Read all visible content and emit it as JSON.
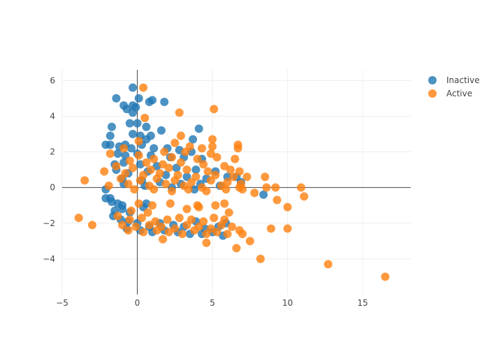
{
  "chart_data": {
    "type": "scatter",
    "title": "",
    "xlabel": "",
    "ylabel": "",
    "xlim": [
      -5,
      18.2
    ],
    "ylim": [
      -6,
      6.6
    ],
    "xticks": [
      -5,
      0,
      5,
      10,
      15
    ],
    "yticks": [
      -4,
      -2,
      0,
      2,
      4,
      6
    ],
    "grid": true,
    "zero_lines": true,
    "legend": {
      "placement": "top-right"
    },
    "series": [
      {
        "name": "Inactive",
        "color": "#1f77b4",
        "points": [
          [
            -0.3,
            5.6
          ],
          [
            0.1,
            5.0
          ],
          [
            1.0,
            4.9
          ],
          [
            0.8,
            4.8
          ],
          [
            1.8,
            4.8
          ],
          [
            -1.4,
            5.0
          ],
          [
            -0.9,
            4.6
          ],
          [
            -0.7,
            4.4
          ],
          [
            -0.3,
            4.6
          ],
          [
            -0.1,
            4.5
          ],
          [
            -0.3,
            4.2
          ],
          [
            4.1,
            3.3
          ],
          [
            -1.7,
            3.4
          ],
          [
            -0.5,
            3.6
          ],
          [
            0.0,
            3.6
          ],
          [
            0.6,
            3.4
          ],
          [
            1.6,
            3.2
          ],
          [
            -1.8,
            2.9
          ],
          [
            -0.3,
            3.0
          ],
          [
            0.2,
            2.9
          ],
          [
            0.9,
            2.9
          ],
          [
            0.6,
            2.7
          ],
          [
            3.7,
            2.7
          ],
          [
            -2.1,
            2.4
          ],
          [
            -1.8,
            2.4
          ],
          [
            -1.2,
            2.3
          ],
          [
            -0.8,
            2.4
          ],
          [
            -0.4,
            2.2
          ],
          [
            0.3,
            2.4
          ],
          [
            1.1,
            2.2
          ],
          [
            2.0,
            2.2
          ],
          [
            2.8,
            2.1
          ],
          [
            3.6,
            2.0
          ],
          [
            -1.3,
            1.9
          ],
          [
            -0.8,
            1.8
          ],
          [
            0.0,
            1.9
          ],
          [
            0.9,
            1.8
          ],
          [
            2.2,
            1.7
          ],
          [
            3.1,
            1.7
          ],
          [
            4.3,
            1.6
          ],
          [
            -1.5,
            1.3
          ],
          [
            -0.9,
            1.4
          ],
          [
            0.2,
            1.3
          ],
          [
            1.3,
            1.2
          ],
          [
            2.6,
            1.1
          ],
          [
            3.9,
            1.0
          ],
          [
            5.2,
            0.9
          ],
          [
            -1.4,
            1.0
          ],
          [
            -0.6,
            0.8
          ],
          [
            0.7,
            0.9
          ],
          [
            1.9,
            0.7
          ],
          [
            3.3,
            0.6
          ],
          [
            4.6,
            0.5
          ],
          [
            6.0,
            0.6
          ],
          [
            -1.0,
            0.5
          ],
          [
            0.3,
            0.4
          ],
          [
            1.5,
            0.3
          ],
          [
            2.9,
            0.2
          ],
          [
            4.2,
            0.2
          ],
          [
            5.5,
            0.1
          ],
          [
            6.6,
            0.6
          ],
          [
            -0.9,
            0.2
          ],
          [
            0.5,
            0.1
          ],
          [
            2.3,
            0.0
          ],
          [
            3.8,
            -0.1
          ],
          [
            6.9,
            0.3
          ],
          [
            8.4,
            -0.4
          ],
          [
            -2.1,
            -0.1
          ],
          [
            -2.1,
            -0.6
          ],
          [
            -1.8,
            -0.6
          ],
          [
            -1.7,
            -0.8
          ],
          [
            -1.3,
            -0.9
          ],
          [
            -1.0,
            -1.0
          ],
          [
            -1.5,
            -1.3
          ],
          [
            -1.0,
            -1.2
          ],
          [
            -0.5,
            -1.4
          ],
          [
            0.6,
            -0.9
          ],
          [
            0.4,
            -1.1
          ],
          [
            -1.6,
            -1.6
          ],
          [
            -1.1,
            -1.8
          ],
          [
            -0.6,
            -1.9
          ],
          [
            0.0,
            -2.0
          ],
          [
            0.8,
            -2.2
          ],
          [
            1.5,
            -2.0
          ],
          [
            2.4,
            -2.1
          ],
          [
            3.1,
            -2.2
          ],
          [
            3.9,
            -1.9
          ],
          [
            4.5,
            -2.3
          ],
          [
            5.4,
            -2.2
          ],
          [
            5.9,
            -2.0
          ],
          [
            -0.7,
            -2.3
          ],
          [
            0.2,
            -2.4
          ],
          [
            1.0,
            -2.5
          ],
          [
            1.8,
            -2.4
          ],
          [
            2.7,
            -2.5
          ],
          [
            3.5,
            -2.6
          ],
          [
            4.3,
            -2.6
          ],
          [
            5.0,
            -2.5
          ],
          [
            5.7,
            -2.7
          ]
        ]
      },
      {
        "name": "Active",
        "color": "#ff7f0e",
        "points": [
          [
            0.4,
            5.6
          ],
          [
            5.1,
            4.4
          ],
          [
            2.8,
            4.2
          ],
          [
            0.5,
            3.9
          ],
          [
            2.9,
            2.9
          ],
          [
            5.0,
            2.7
          ],
          [
            0.1,
            2.6
          ],
          [
            2.5,
            2.5
          ],
          [
            3.5,
            2.3
          ],
          [
            5.0,
            2.3
          ],
          [
            6.7,
            2.4
          ],
          [
            6.7,
            2.2
          ],
          [
            4.3,
            2.2
          ],
          [
            3.2,
            2.0
          ],
          [
            1.8,
            2.0
          ],
          [
            4.9,
            1.9
          ],
          [
            -1.8,
            1.9
          ],
          [
            -0.9,
            2.2
          ],
          [
            0.1,
            1.8
          ],
          [
            1.1,
            1.6
          ],
          [
            2.3,
            1.7
          ],
          [
            4.0,
            1.6
          ],
          [
            5.3,
            1.7
          ],
          [
            6.5,
            1.6
          ],
          [
            -0.5,
            1.5
          ],
          [
            0.6,
            1.4
          ],
          [
            1.7,
            1.3
          ],
          [
            2.9,
            1.4
          ],
          [
            4.4,
            1.3
          ],
          [
            5.8,
            1.2
          ],
          [
            -1.4,
            1.2
          ],
          [
            -0.3,
            1.1
          ],
          [
            0.9,
            1.0
          ],
          [
            2.1,
            1.1
          ],
          [
            3.3,
            1.0
          ],
          [
            4.7,
            0.9
          ],
          [
            6.2,
            1.0
          ],
          [
            6.8,
            0.9
          ],
          [
            -2.2,
            0.9
          ],
          [
            -0.8,
            0.8
          ],
          [
            0.4,
            0.7
          ],
          [
            1.5,
            0.8
          ],
          [
            2.7,
            0.7
          ],
          [
            3.9,
            0.6
          ],
          [
            5.2,
            0.7
          ],
          [
            6.4,
            0.6
          ],
          [
            7.3,
            0.6
          ],
          [
            -1.1,
            0.5
          ],
          [
            0.2,
            0.4
          ],
          [
            1.3,
            0.5
          ],
          [
            2.5,
            0.4
          ],
          [
            3.6,
            0.3
          ],
          [
            4.9,
            0.4
          ],
          [
            6.0,
            0.3
          ],
          [
            6.9,
            0.2
          ],
          [
            -0.6,
            0.2
          ],
          [
            0.8,
            0.1
          ],
          [
            1.9,
            0.2
          ],
          [
            3.1,
            0.1
          ],
          [
            4.3,
            0.0
          ],
          [
            5.6,
            0.1
          ],
          [
            6.8,
            0.0
          ],
          [
            -1.9,
            0.1
          ],
          [
            -0.2,
            -0.1
          ],
          [
            1.1,
            -0.1
          ],
          [
            2.3,
            -0.2
          ],
          [
            3.4,
            -0.1
          ],
          [
            4.6,
            -0.2
          ],
          [
            5.9,
            -0.1
          ],
          [
            7.0,
            -0.1
          ],
          [
            8.5,
            0.6
          ],
          [
            8.6,
            0.0
          ],
          [
            9.2,
            0.0
          ],
          [
            7.8,
            -0.3
          ],
          [
            10.9,
            0.0
          ],
          [
            11.1,
            -0.5
          ],
          [
            9.3,
            -0.7
          ],
          [
            10.0,
            -1.1
          ],
          [
            -3.5,
            0.4
          ],
          [
            -3.9,
            -1.7
          ],
          [
            -3.0,
            -2.1
          ],
          [
            0.1,
            -0.9
          ],
          [
            1.0,
            -1.0
          ],
          [
            2.2,
            -0.9
          ],
          [
            4.0,
            -1.0
          ],
          [
            5.2,
            -1.0
          ],
          [
            5.8,
            -0.9
          ],
          [
            -0.4,
            -1.3
          ],
          [
            0.7,
            -1.4
          ],
          [
            3.3,
            -1.2
          ],
          [
            4.1,
            -1.1
          ],
          [
            6.1,
            -1.4
          ],
          [
            -1.3,
            -1.6
          ],
          [
            -0.5,
            -1.8
          ],
          [
            0.3,
            -1.7
          ],
          [
            1.2,
            -1.9
          ],
          [
            2.0,
            -1.8
          ],
          [
            2.8,
            -1.7
          ],
          [
            3.6,
            -1.8
          ],
          [
            4.4,
            -1.9
          ],
          [
            5.1,
            -1.7
          ],
          [
            5.8,
            -1.8
          ],
          [
            -1.0,
            -2.1
          ],
          [
            -0.1,
            -2.2
          ],
          [
            0.8,
            -2.1
          ],
          [
            1.6,
            -2.2
          ],
          [
            2.5,
            -2.3
          ],
          [
            3.3,
            -2.1
          ],
          [
            4.1,
            -2.2
          ],
          [
            4.9,
            -2.3
          ],
          [
            5.6,
            -2.1
          ],
          [
            6.3,
            -2.2
          ],
          [
            -0.6,
            -2.4
          ],
          [
            0.4,
            -2.5
          ],
          [
            1.3,
            -2.4
          ],
          [
            2.1,
            -2.5
          ],
          [
            3.0,
            -2.6
          ],
          [
            3.8,
            -2.4
          ],
          [
            4.6,
            -2.6
          ],
          [
            5.3,
            -2.5
          ],
          [
            6.0,
            -2.6
          ],
          [
            6.8,
            -2.4
          ],
          [
            7.0,
            -2.6
          ],
          [
            8.9,
            -2.3
          ],
          [
            10.0,
            -2.3
          ],
          [
            1.7,
            -2.9
          ],
          [
            4.6,
            -3.1
          ],
          [
            7.5,
            -3.0
          ],
          [
            6.6,
            -3.4
          ],
          [
            8.2,
            -4.0
          ],
          [
            12.7,
            -4.3
          ],
          [
            16.5,
            -5.0
          ]
        ]
      }
    ]
  }
}
